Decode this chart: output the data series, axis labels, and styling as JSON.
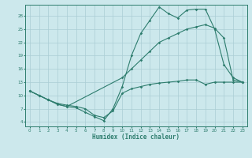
{
  "xlabel": "Humidex (Indice chaleur)",
  "bg_color": "#cce8ec",
  "line_color": "#2e7d6e",
  "grid_color": "#aacdd4",
  "xlim": [
    -0.5,
    23.5
  ],
  "ylim": [
    3.0,
    30.5
  ],
  "yticks": [
    4,
    7,
    10,
    13,
    16,
    19,
    22,
    25,
    28
  ],
  "xticks": [
    0,
    1,
    2,
    3,
    4,
    5,
    6,
    7,
    8,
    9,
    10,
    11,
    12,
    13,
    14,
    15,
    16,
    17,
    18,
    19,
    20,
    21,
    22,
    23
  ],
  "line1_x": [
    0,
    1,
    2,
    3,
    4,
    5,
    6,
    7,
    8,
    9,
    10,
    11,
    12,
    13,
    14,
    15,
    16,
    17,
    18,
    19,
    20,
    21,
    22,
    23
  ],
  "line1_y": [
    11.0,
    10.0,
    9.0,
    8.0,
    7.5,
    7.2,
    6.2,
    5.2,
    4.3,
    7.0,
    12.0,
    19.0,
    24.0,
    27.0,
    30.0,
    28.5,
    27.5,
    29.3,
    29.5,
    29.5,
    25.0,
    17.0,
    14.0,
    13.0
  ],
  "line2_x": [
    0,
    1,
    2,
    3,
    4,
    10,
    11,
    12,
    13,
    14,
    15,
    16,
    17,
    18,
    19,
    20,
    21,
    22,
    23
  ],
  "line2_y": [
    11.0,
    10.0,
    9.0,
    8.0,
    7.5,
    14.0,
    16.0,
    18.0,
    20.0,
    22.0,
    23.0,
    24.0,
    25.0,
    25.5,
    26.0,
    25.2,
    23.0,
    13.5,
    13.0
  ],
  "line3_x": [
    0,
    1,
    2,
    3,
    4,
    5,
    6,
    7,
    8,
    9,
    10,
    11,
    12,
    13,
    14,
    15,
    16,
    17,
    18,
    19,
    20,
    21,
    22,
    23
  ],
  "line3_y": [
    11.0,
    10.0,
    9.0,
    8.2,
    7.8,
    7.5,
    7.0,
    5.5,
    5.0,
    6.5,
    10.5,
    11.5,
    12.0,
    12.5,
    12.8,
    13.0,
    13.2,
    13.5,
    13.5,
    12.5,
    13.0,
    13.0,
    13.0,
    13.0
  ]
}
